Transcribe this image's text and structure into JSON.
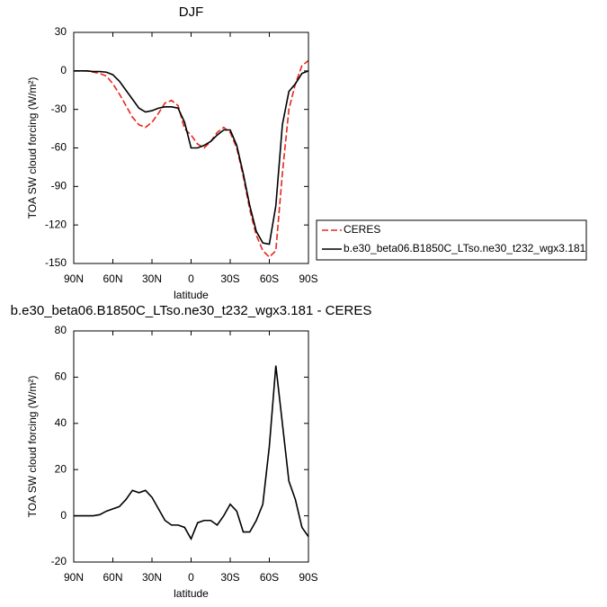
{
  "chart_data": [
    {
      "type": "line",
      "title": "DJF",
      "x_label": "latitude",
      "y_label": "TOA SW cloud forcing (W/m²)",
      "x": [
        90,
        85,
        80,
        75,
        70,
        65,
        60,
        55,
        50,
        45,
        40,
        35,
        30,
        25,
        20,
        15,
        10,
        5,
        0,
        -5,
        -10,
        -15,
        -20,
        -25,
        -30,
        -35,
        -40,
        -45,
        -50,
        -55,
        -60,
        -65,
        -70,
        -75,
        -80,
        -85,
        -90
      ],
      "xlim": [
        90,
        -90
      ],
      "xticks": [
        {
          "value": 90,
          "label": "90N"
        },
        {
          "value": 60,
          "label": "60N"
        },
        {
          "value": 30,
          "label": "30N"
        },
        0,
        {
          "value": -30,
          "label": "30S"
        },
        {
          "value": -60,
          "label": "60S"
        },
        {
          "value": -90,
          "label": "90S"
        }
      ],
      "ylim": [
        -150,
        30
      ],
      "yticks": [
        -150,
        -120,
        -90,
        -60,
        -30,
        0,
        30
      ],
      "series": [
        {
          "name": "CERES",
          "color": "#e8261c",
          "style": "dashed",
          "values": [
            0,
            0,
            0,
            -1,
            -2,
            -4,
            -10,
            -18,
            -27,
            -36,
            -42,
            -44,
            -40,
            -33,
            -25,
            -23,
            -27,
            -45,
            -50,
            -57,
            -60,
            -55,
            -48,
            -44,
            -48,
            -60,
            -82,
            -108,
            -128,
            -140,
            -145,
            -140,
            -80,
            -30,
            -10,
            4,
            8
          ]
        },
        {
          "name": "b.e30_beta06.B1850C_LTso.ne30_t232_wgx3.181",
          "color": "#000000",
          "style": "solid",
          "values": [
            0,
            0,
            0,
            -0.5,
            -0.5,
            -1,
            -3,
            -8,
            -15,
            -22,
            -29,
            -32,
            -31,
            -29,
            -28,
            -28,
            -29,
            -40,
            -60,
            -60,
            -58,
            -55,
            -50,
            -46,
            -46,
            -58,
            -80,
            -105,
            -125,
            -134,
            -135,
            -105,
            -42,
            -16,
            -10,
            -2,
            0
          ]
        }
      ]
    },
    {
      "type": "line",
      "title": "b.e30_beta06.B1850C_LTso.ne30_t232_wgx3.181 - CERES",
      "x_label": "latitude",
      "y_label": "TOA SW cloud forcing (W/m²)",
      "x": [
        90,
        85,
        80,
        75,
        70,
        65,
        60,
        55,
        50,
        45,
        40,
        35,
        30,
        25,
        20,
        15,
        10,
        5,
        0,
        -5,
        -10,
        -15,
        -20,
        -25,
        -30,
        -35,
        -40,
        -45,
        -50,
        -55,
        -60,
        -65,
        -70,
        -75,
        -80,
        -85,
        -90
      ],
      "xlim": [
        90,
        -90
      ],
      "xticks": [
        {
          "value": 90,
          "label": "90N"
        },
        {
          "value": 60,
          "label": "60N"
        },
        {
          "value": 30,
          "label": "30N"
        },
        0,
        {
          "value": -30,
          "label": "30S"
        },
        {
          "value": -60,
          "label": "60S"
        },
        {
          "value": -90,
          "label": "90S"
        }
      ],
      "ylim": [
        -20,
        80
      ],
      "yticks": [
        -20,
        0,
        20,
        40,
        60,
        80
      ],
      "color": "#000000",
      "values": [
        0,
        0,
        0,
        0,
        0.5,
        2,
        3,
        4,
        7,
        11,
        10,
        11,
        8,
        3,
        -2,
        -4,
        -4,
        -5,
        -10,
        -3,
        -2,
        -2,
        -4,
        0,
        5,
        2,
        -7,
        -7,
        -2,
        5,
        30,
        65,
        40,
        15,
        7,
        -5,
        -9
      ]
    }
  ]
}
